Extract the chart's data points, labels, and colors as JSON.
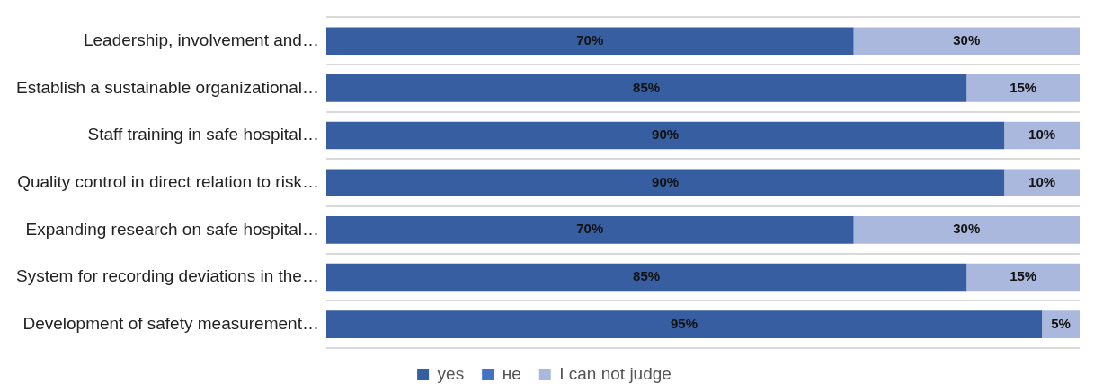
{
  "chart_data": {
    "type": "bar",
    "orientation": "horizontal",
    "stacked": true,
    "categories": [
      "Leadership, involvement and…",
      "Establish a sustainable organizational…",
      "Staff training in safe hospital…",
      "Quality control in direct relation to risk…",
      "Expanding research on safe hospital…",
      "System for recording deviations in the…",
      "Development of safety measurement…"
    ],
    "series": [
      {
        "name": "yes",
        "color": "#365ea0",
        "values": [
          70,
          85,
          90,
          90,
          70,
          85,
          95
        ],
        "value_labels": [
          "70%",
          "85%",
          "90%",
          "90%",
          "70%",
          "85%",
          "95%"
        ]
      },
      {
        "name": "не",
        "color": "#4472c4",
        "values": [
          0,
          0,
          0,
          0,
          0,
          0,
          0
        ]
      },
      {
        "name": "I can not judge",
        "color": "#a9b8dc",
        "values": [
          30,
          15,
          10,
          10,
          30,
          15,
          5
        ],
        "value_labels": [
          "30%",
          "15%",
          "10%",
          "10%",
          "30%",
          "15%",
          "5%"
        ]
      }
    ],
    "xlim": [
      0,
      100
    ],
    "tick_labels": "y",
    "grid": "y",
    "legend": "bottom"
  }
}
